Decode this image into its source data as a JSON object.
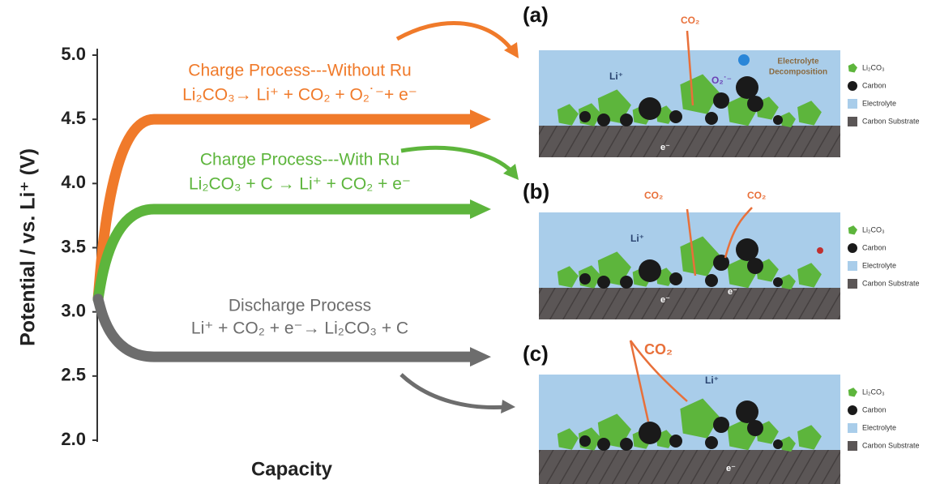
{
  "axis": {
    "y_label": "Potential / vs. Li⁺ (V)",
    "x_label": "Capacity",
    "ylim": [
      2.0,
      5.0
    ],
    "yticks": [
      {
        "value": 5.0,
        "label": "5.0"
      },
      {
        "value": 4.5,
        "label": "4.5"
      },
      {
        "value": 4.0,
        "label": "4.0"
      },
      {
        "value": 3.5,
        "label": "3.5"
      },
      {
        "value": 3.0,
        "label": "3.0"
      },
      {
        "value": 2.5,
        "label": "2.5"
      },
      {
        "value": 2.0,
        "label": "2.0"
      }
    ]
  },
  "start_potential": 3.1,
  "curves": [
    {
      "title": "Charge Process---Without Ru",
      "equation": "Li₂CO₃→ Li⁺ + CO₂ + O₂˙⁻+ e⁻",
      "plateau": 4.5,
      "color": "#f07a2a"
    },
    {
      "title": "Charge Process---With Ru",
      "equation": "Li₂CO₃ + C → Li⁺ + CO₂ + e⁻",
      "plateau": 3.8,
      "color": "#5db53c"
    },
    {
      "title": "Discharge Process",
      "equation": "Li⁺ + CO₂ + e⁻→ Li₂CO₃ + C",
      "plateau": 2.65,
      "color": "#6d6d6d"
    }
  ],
  "panels": [
    {
      "label": "(a)",
      "texts": [
        "CO₂",
        "Li⁺",
        "O₂˙⁻",
        "Electrolyte",
        "Decomposition",
        "e⁻"
      ]
    },
    {
      "label": "(b)",
      "texts": [
        "CO₂",
        "CO₂",
        "Li⁺",
        "e⁻",
        "e⁻"
      ]
    },
    {
      "label": "(c)",
      "texts": [
        "CO₂",
        "Li⁺",
        "e⁻"
      ]
    }
  ],
  "legend": [
    "Li₂CO₃",
    "Carbon",
    "Electrolyte",
    "Carbon Substrate"
  ]
}
